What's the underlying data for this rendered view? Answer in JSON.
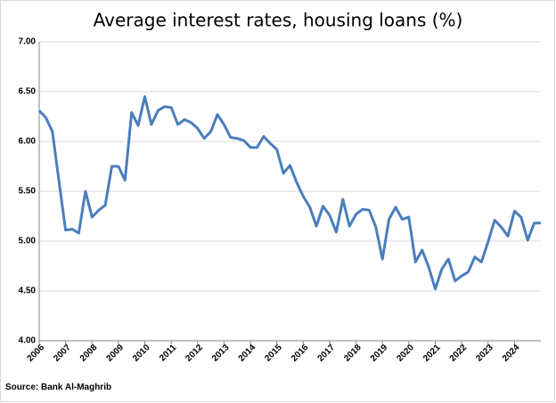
{
  "chart_data": {
    "type": "line",
    "title": "Average interest rates, housing loans (%)",
    "source": "Source: Bank Al-Maghrib",
    "color": "#4a7ebb",
    "grid": true,
    "categories": [
      "2006",
      null,
      null,
      null,
      "2007",
      null,
      null,
      null,
      "2008",
      null,
      null,
      null,
      "2009",
      null,
      null,
      null,
      "2010",
      null,
      null,
      null,
      "2011",
      null,
      null,
      null,
      "2012",
      null,
      null,
      null,
      "2013",
      null,
      null,
      null,
      "2014",
      null,
      null,
      null,
      "2015",
      null,
      null,
      null,
      "2016",
      null,
      null,
      null,
      "2017",
      null,
      null,
      null,
      "2018",
      null,
      null,
      null,
      "2019",
      null,
      null,
      null,
      "2020",
      null,
      null,
      null,
      "2021",
      null,
      null,
      null,
      "2022",
      null,
      null,
      null,
      "2023",
      null,
      null,
      null,
      "2024",
      null,
      null,
      null,
      null
    ],
    "values": [
      6.31,
      6.24,
      6.1,
      5.6,
      5.11,
      5.12,
      5.08,
      5.5,
      5.24,
      5.31,
      5.36,
      5.75,
      5.75,
      5.61,
      6.29,
      6.16,
      6.45,
      6.17,
      6.31,
      6.35,
      6.34,
      6.17,
      6.22,
      6.19,
      6.13,
      6.03,
      6.1,
      6.27,
      6.17,
      6.04,
      6.03,
      6.01,
      5.94,
      5.94,
      6.05,
      5.98,
      5.92,
      5.68,
      5.76,
      5.59,
      5.45,
      5.34,
      5.15,
      5.35,
      5.26,
      5.09,
      5.42,
      5.15,
      5.27,
      5.32,
      5.31,
      5.14,
      4.82,
      5.22,
      5.34,
      5.22,
      5.24,
      4.79,
      4.91,
      4.74,
      4.52,
      4.72,
      4.82,
      4.6,
      4.65,
      4.69,
      4.84,
      4.79,
      4.99,
      5.21,
      5.14,
      5.05,
      5.3,
      5.24,
      5.01,
      5.18,
      5.18
    ],
    "ylim": [
      4,
      7
    ],
    "yticks": [
      {
        "value": 4,
        "label": "4.00"
      },
      {
        "value": 4.5,
        "label": "4.50"
      },
      {
        "value": 5,
        "label": "5.00"
      },
      {
        "value": 5.5,
        "label": "5.50"
      },
      {
        "value": 6,
        "label": "6.00"
      },
      {
        "value": 6.5,
        "label": "6.50"
      },
      {
        "value": 7,
        "label": "7.00"
      }
    ]
  }
}
